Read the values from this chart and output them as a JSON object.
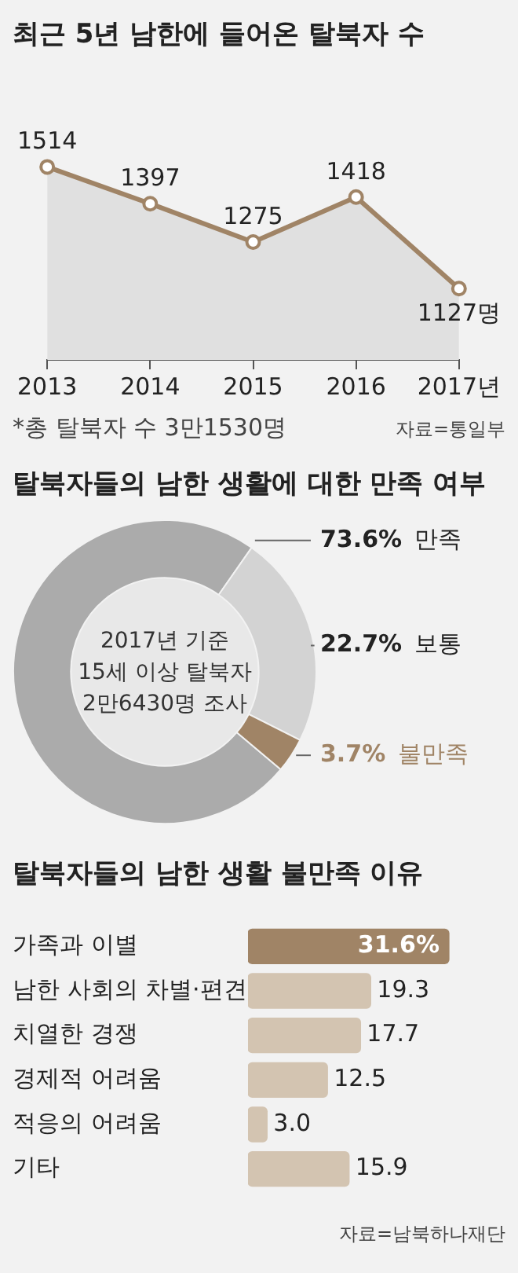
{
  "chart_data": [
    {
      "type": "area",
      "title": "최근 5년 남한에 들어온 탈북자 수",
      "categories": [
        "2013",
        "2014",
        "2015",
        "2016",
        "2017년"
      ],
      "values": [
        1514,
        1397,
        1275,
        1418,
        1127
      ],
      "color": "#a08466",
      "value_labels": [
        "1514",
        "1397",
        "1275",
        "1418",
        "1127명"
      ],
      "tick_labels": "x",
      "marker": "circle",
      "annotations": [
        "*총 탈북자 수 3만1530명",
        "자료=통일부"
      ]
    },
    {
      "type": "donut",
      "title": "탈북자들의 남한 생활에 대한 만족 여부",
      "categories": [
        "만족",
        "보통",
        "불만족"
      ],
      "values": [
        73.6,
        22.7,
        3.7
      ],
      "colors": [
        "#ababab",
        "#d3d3d3",
        "#a08466"
      ],
      "value_labels": [
        "73.6%",
        "22.7%",
        "3.7%"
      ],
      "annotations": [
        "2017년 기준\n15세 이상 탈북자\n2만6430명 조사"
      ]
    },
    {
      "type": "bar",
      "orientation": "horizontal",
      "title": "탈북자들의 남한 생활 불만족 이유",
      "categories": [
        "가족과 이별",
        "남한 사회의 차별·편견",
        "치열한 경쟁",
        "경제적 어려움",
        "적응의 어려움",
        "기타"
      ],
      "values": [
        31.6,
        19.3,
        17.7,
        12.5,
        3.0,
        15.9
      ],
      "colors": [
        "#a08466",
        "#d3c4b1",
        "#d3c4b1",
        "#d3c4b1",
        "#d3c4b1",
        "#d3c4b1"
      ],
      "value_labels": [
        "31.6%",
        "19.3",
        "17.7",
        "12.5",
        "3.0",
        "15.9"
      ],
      "annotations": [
        "자료=남북하나재단"
      ]
    }
  ]
}
